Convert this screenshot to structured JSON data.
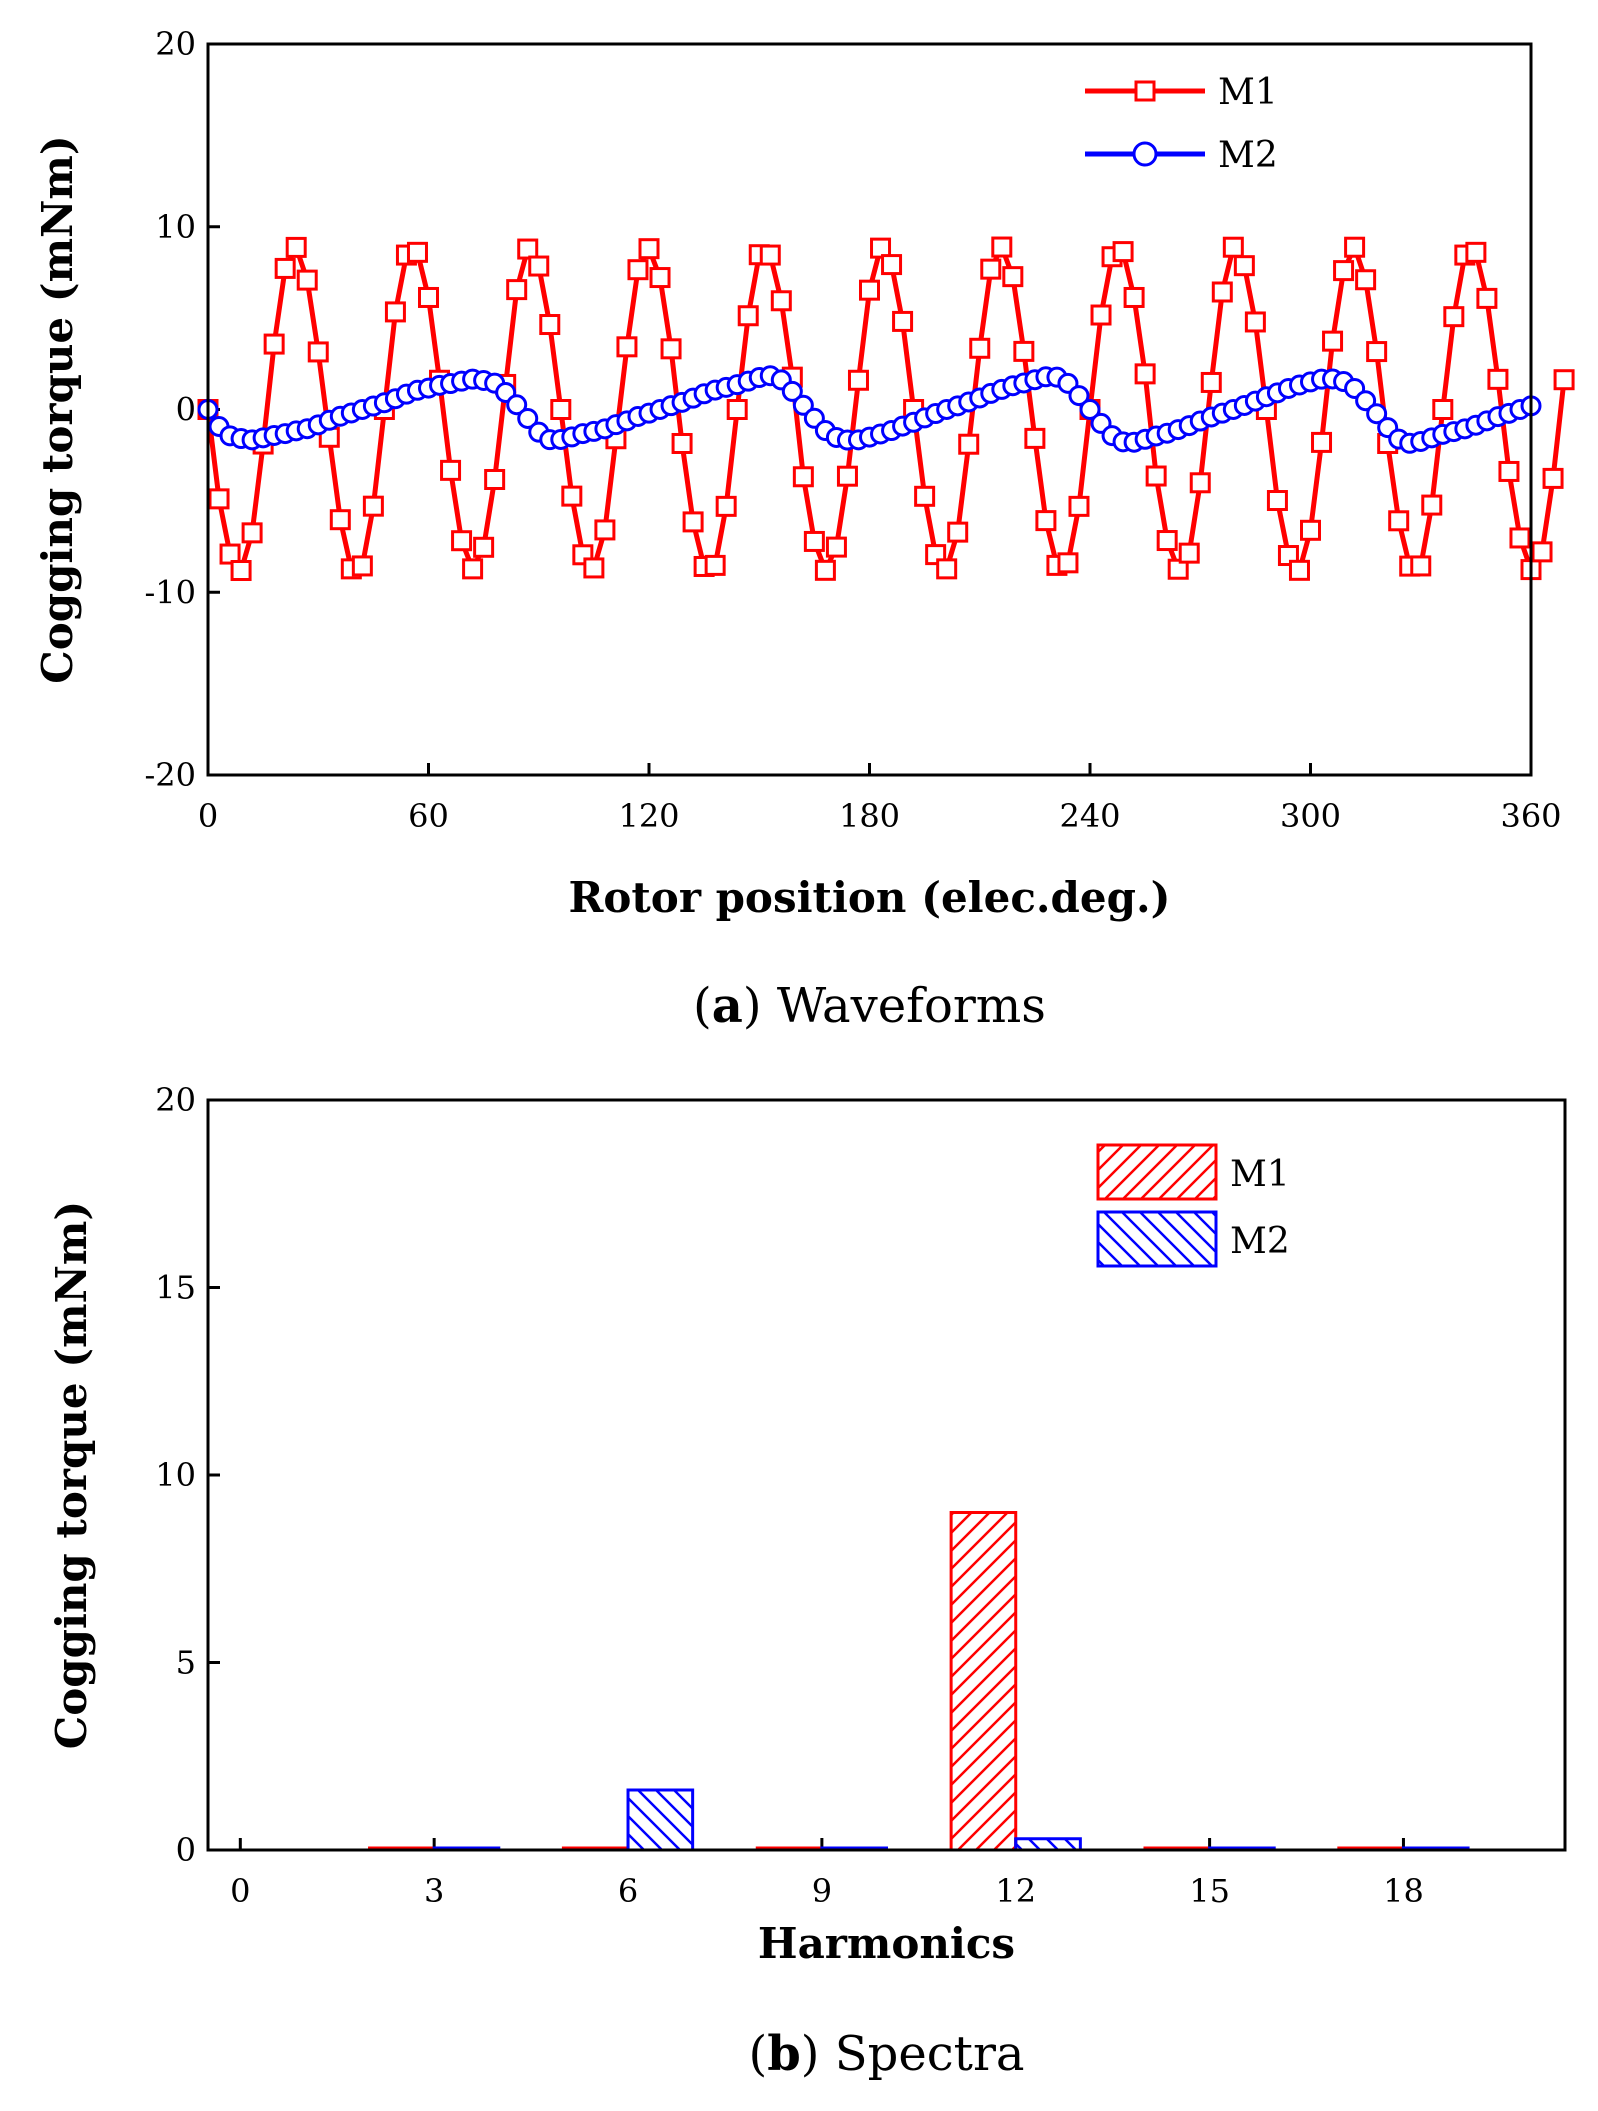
{
  "chart_data": [
    {
      "type": "line",
      "caption_letter": "a",
      "caption_text": "Waveforms",
      "xlabel": "Rotor position (elec.deg.)",
      "ylabel": "Cogging torque (mNm)",
      "xlim": [
        0,
        360
      ],
      "ylim": [
        -20,
        20
      ],
      "xticks": [
        0,
        60,
        120,
        180,
        240,
        300,
        360
      ],
      "yticks": [
        -20,
        -10,
        0,
        10,
        20
      ],
      "x_step": 3,
      "legend_position": "top-right",
      "series": [
        {
          "name": "M1",
          "color": "#ff0000",
          "marker": "square",
          "values": [
            0,
            -4.89,
            -7.91,
            -8.81,
            -6.75,
            -1.89,
            3.58,
            7.72,
            8.87,
            7.08,
            3.15,
            -1.52,
            -6.03,
            -8.72,
            -8.56,
            -5.29,
            0.0,
            5.34,
            8.45,
            8.6,
            6.13,
            1.6,
            -3.33,
            -7.18,
            -8.72,
            -7.54,
            -3.83,
            1.37,
            6.56,
            8.78,
            7.85,
            4.65,
            0.0,
            -4.74,
            -7.95,
            -8.67,
            -6.59,
            -1.6,
            3.43,
            7.65,
            8.8,
            7.22,
            3.32,
            -1.86,
            -6.15,
            -8.59,
            -8.53,
            -5.3,
            0.0,
            5.13,
            8.47,
            8.45,
            5.95,
            1.77,
            -3.68,
            -7.22,
            -8.8,
            -7.53,
            -3.65,
            1.6,
            6.53,
            8.83,
            7.93,
            4.82,
            0.0,
            -4.75,
            -7.94,
            -8.72,
            -6.71,
            -1.9,
            3.35,
            7.68,
            8.89,
            7.27,
            3.18,
            -1.58,
            -6.08,
            -8.53,
            -8.39,
            -5.3,
            0.0,
            5.17,
            8.36,
            8.64,
            6.13,
            1.95,
            -3.64,
            -7.17,
            -8.74,
            -7.86,
            -4.01,
            1.48,
            6.43,
            8.88,
            7.87,
            4.79,
            0.0,
            -4.98,
            -7.99,
            -8.8,
            -6.61,
            -1.8,
            3.74,
            7.6,
            8.88,
            7.1,
            3.17,
            -1.86,
            -6.09,
            -8.57,
            -8.56,
            -5.23,
            0.0,
            5.08,
            8.45,
            8.6,
            6.08,
            1.65,
            -3.39,
            -7.03,
            -8.76,
            -7.79,
            -3.77,
            1.63
          ]
        },
        {
          "name": "M2",
          "color": "#0000ff",
          "marker": "circle",
          "values": [
            0,
            -0.93,
            -1.44,
            -1.59,
            -1.66,
            -1.55,
            -1.42,
            -1.32,
            -1.17,
            -1.05,
            -0.84,
            -0.59,
            -0.37,
            -0.19,
            0.0,
            0.19,
            0.37,
            0.59,
            0.84,
            1.05,
            1.17,
            1.32,
            1.42,
            1.55,
            1.66,
            1.59,
            1.44,
            0.93,
            0.26,
            -0.49,
            -1.24,
            -1.65,
            -1.64,
            -1.5,
            -1.32,
            -1.2,
            -1.06,
            -0.83,
            -0.62,
            -0.38,
            -0.2,
            0.0,
            0.21,
            0.39,
            0.62,
            0.86,
            1.06,
            1.21,
            1.36,
            1.55,
            1.75,
            1.85,
            1.62,
            0.99,
            0.23,
            -0.48,
            -1.15,
            -1.53,
            -1.67,
            -1.66,
            -1.51,
            -1.34,
            -1.15,
            -0.91,
            -0.7,
            -0.46,
            -0.22,
            0.0,
            0.2,
            0.41,
            0.63,
            0.88,
            1.1,
            1.3,
            1.45,
            1.63,
            1.79,
            1.77,
            1.43,
            0.76,
            0.0,
            -0.76,
            -1.43,
            -1.77,
            -1.79,
            -1.63,
            -1.45,
            -1.3,
            -1.1,
            -0.88,
            -0.63,
            -0.41,
            -0.2,
            0.0,
            0.22,
            0.46,
            0.7,
            0.91,
            1.15,
            1.34,
            1.51,
            1.66,
            1.67,
            1.53,
            1.15,
            0.48,
            -0.23,
            -0.99,
            -1.62,
            -1.85,
            -1.75,
            -1.55,
            -1.36,
            -1.21,
            -1.06,
            -0.86,
            -0.62,
            -0.39,
            -0.21,
            0.0,
            0.2
          ]
        }
      ]
    },
    {
      "type": "bar",
      "caption_letter": "b",
      "caption_text": "Spectra",
      "xlabel": "Harmonics",
      "ylabel": "Cogging torque (mNm)",
      "xlim": [
        -0.5,
        20.5
      ],
      "ylim": [
        0,
        20
      ],
      "xticks": [
        0,
        3,
        6,
        9,
        12,
        15,
        18
      ],
      "yticks": [
        0,
        5,
        10,
        15,
        20
      ],
      "legend_position": "top-right",
      "series": [
        {
          "name": "M1",
          "color": "#ff0000",
          "hatch": "forward-diagonal",
          "offset": -0.5,
          "categories": [
            3,
            6,
            9,
            12,
            15,
            18
          ],
          "values": [
            0,
            0,
            0,
            9.0,
            0,
            0
          ]
        },
        {
          "name": "M2",
          "color": "#0000ff",
          "hatch": "back-diagonal",
          "offset": 0.5,
          "categories": [
            3,
            6,
            9,
            12,
            15,
            18
          ],
          "values": [
            0,
            1.6,
            0,
            0.3,
            0,
            0.05
          ]
        }
      ]
    }
  ]
}
